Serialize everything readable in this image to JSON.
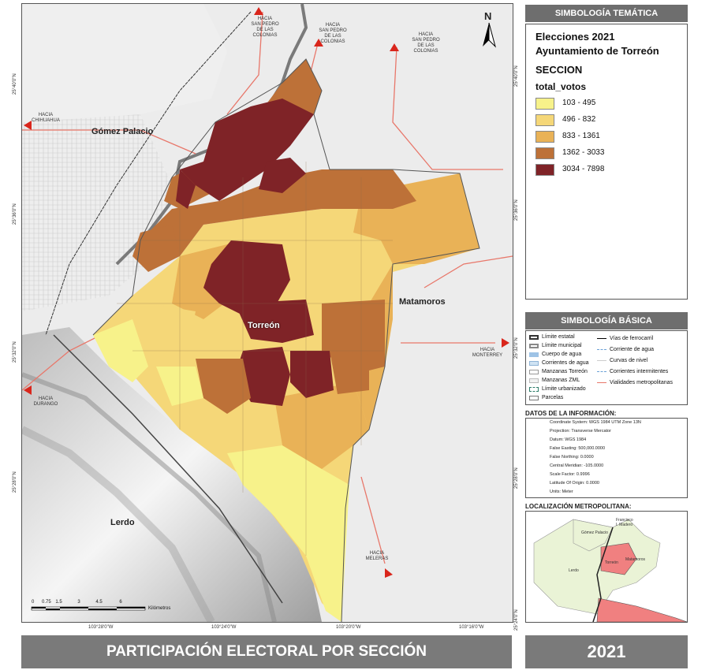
{
  "map": {
    "cities": {
      "gomez_palacio": "Gómez Palacio",
      "matamoros": "Matamoros",
      "torreon": "Torreón",
      "lerdo": "Lerdo"
    },
    "hacia": {
      "san_pedro_1": "HACIA\nSAN PEDRO\nDE LAS\nCOLONIAS",
      "san_pedro_2": "HACIA\nSAN PEDRO\nDE LAS\nCOLONIAS",
      "san_pedro_3": "HACIA\nSAN PEDRO\nDE LAS\nCOLONIAS",
      "chihuahua": "HACIA\nCHIHUAHUA",
      "durango": "HACIA\nDURANGO",
      "monterrey": "HACIA\nMONTERREY",
      "meleras": "HACIA\nMELERAS"
    },
    "north": "N",
    "scale": {
      "ticks": [
        "0",
        "0.75",
        "1.5",
        "3",
        "4.5",
        "6"
      ],
      "unit": "Kilómetros"
    },
    "coords_bottom": [
      "103°28'0\"W",
      "103°24'0\"W",
      "103°20'0\"W",
      "103°16'0\"W"
    ],
    "coords_side": [
      "25°40'0\"N",
      "25°36'0\"N",
      "25°32'0\"N",
      "25°28'0\"N",
      "25°24'0\"N"
    ]
  },
  "legend_tematica": {
    "header": "SIMBOLOGÍA TEMÁTICA",
    "title_line1": "Elecciones 2021",
    "title_line2": "Ayuntamiento de Torreón",
    "layer": "SECCION",
    "field": "total_votos",
    "classes": [
      {
        "label": "103 - 495",
        "color": "#f7f28a"
      },
      {
        "label": "496 - 832",
        "color": "#f5d778"
      },
      {
        "label": "833 - 1361",
        "color": "#e9b257"
      },
      {
        "label": "1362 - 3033",
        "color": "#bd7138"
      },
      {
        "label": "3034 - 7898",
        "color": "#7f2327"
      }
    ]
  },
  "legend_basica": {
    "header": "SIMBOLOGÍA BÁSICA",
    "left": [
      "Límite estatal",
      "Límite municipal",
      "Cuerpo de agua",
      "Corrientes de agua",
      "Manzanas Torreón",
      "Manzanas ZML",
      "Límite urbanizado",
      "Parcelas"
    ],
    "right": [
      "Vías de ferrocarril",
      "Corriente de agua",
      "Curvas de nivel",
      "Corrientes intermitentes",
      "Vialidades metropolitanas"
    ]
  },
  "datos": {
    "header": "DATOS DE LA INFORMACIÓN:",
    "lines": [
      "Coordinate System: WGS 1984 UTM Zone 13N",
      "Projection: Transverse Mercator",
      "Datum: WGS 1984",
      "False Easting: 500,000.0000",
      "False Northing: 0.0000",
      "Central Meridian: -105.0000",
      "Scale Factor: 0.9996",
      "Latitude Of Origin: 0.0000",
      "Units: Meter"
    ]
  },
  "localizacion": {
    "header": "LOCALIZACIÓN METROPOLITANA:",
    "labels": {
      "gomez": "Gómez Palacio",
      "lerdo": "Lerdo",
      "torreon": "Torreón",
      "matamoros": "Matamoros",
      "francisco": "Francisco\nI. Madero"
    }
  },
  "footer": {
    "title": "PARTICIPACIÓN ELECTORAL POR SECCIÓN",
    "year": "2021"
  }
}
